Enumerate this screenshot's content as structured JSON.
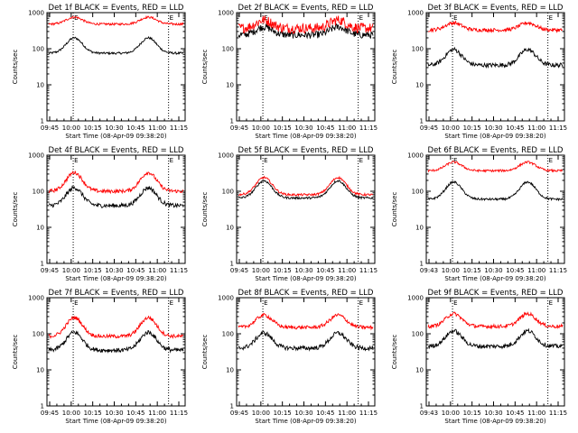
{
  "figure": {
    "background": "#ffffff"
  },
  "chart_data": [
    {
      "type": "line",
      "title": "Det 1f BLACK = Events, RED = LLD",
      "xlabel": "Start Time (08-Apr-09 09:38:20)",
      "ylabel": "Counts/sec",
      "yscale": "log",
      "ylim": [
        1,
        1000
      ],
      "y_ticks": [
        "1",
        "10",
        "100",
        "1000"
      ],
      "x_ticks": [
        "09:45",
        "10:00",
        "10:15",
        "10:30",
        "10:45",
        "11:00",
        "11:15"
      ],
      "markers": [
        "E",
        "E"
      ],
      "series": [
        {
          "name": "Events",
          "color": "#000000",
          "base": 75,
          "peak": 200,
          "noise": 0.03
        },
        {
          "name": "LLD",
          "color": "#ff0000",
          "base": 480,
          "peak": 750,
          "noise": 0.03
        }
      ]
    },
    {
      "type": "line",
      "title": "Det 2f BLACK = Events, RED = LLD",
      "xlabel": "Start Time (08-Apr-09 09:38:20)",
      "ylabel": "Counts/sec",
      "yscale": "log",
      "ylim": [
        1,
        1000
      ],
      "y_ticks": [
        "1",
        "10",
        "100",
        "1000"
      ],
      "x_ticks": [
        "09:45",
        "10:00",
        "10:15",
        "10:30",
        "10:45",
        "11:00",
        "11:15"
      ],
      "markers": [
        "E",
        "E"
      ],
      "series": [
        {
          "name": "Events",
          "color": "#000000",
          "base": 240,
          "peak": 400,
          "noise": 0.1
        },
        {
          "name": "LLD",
          "color": "#ff0000",
          "base": 370,
          "peak": 620,
          "noise": 0.14
        }
      ]
    },
    {
      "type": "line",
      "title": "Det 3f BLACK = Events, RED = LLD",
      "xlabel": "Start Time (08-Apr-09 09:38:20)",
      "ylabel": "Counts/sec",
      "yscale": "log",
      "ylim": [
        1,
        1000
      ],
      "y_ticks": [
        "1",
        "10",
        "100",
        "1000"
      ],
      "x_ticks": [
        "09:45",
        "10:00",
        "10:15",
        "10:30",
        "10:45",
        "11:00",
        "11:15"
      ],
      "markers": [
        "E",
        "E"
      ],
      "series": [
        {
          "name": "Events",
          "color": "#000000",
          "base": 35,
          "peak": 95,
          "noise": 0.06
        },
        {
          "name": "LLD",
          "color": "#ff0000",
          "base": 330,
          "peak": 520,
          "noise": 0.05
        }
      ]
    },
    {
      "type": "line",
      "title": "Det 4f BLACK = Events, RED = LLD",
      "xlabel": "Start Time (08-Apr-09 09:38:20)",
      "ylabel": "Counts/sec",
      "yscale": "log",
      "ylim": [
        1,
        1000
      ],
      "y_ticks": [
        "1",
        "10",
        "100",
        "1000"
      ],
      "x_ticks": [
        "09:45",
        "10:00",
        "10:15",
        "10:30",
        "10:45",
        "11:00",
        "11:15"
      ],
      "markers": [
        "E",
        "E"
      ],
      "series": [
        {
          "name": "Events",
          "color": "#000000",
          "base": 40,
          "peak": 125,
          "noise": 0.06
        },
        {
          "name": "LLD",
          "color": "#ff0000",
          "base": 100,
          "peak": 330,
          "noise": 0.05
        }
      ]
    },
    {
      "type": "line",
      "title": "Det 5f BLACK = Events, RED = LLD",
      "xlabel": "Start Time (08-Apr-09 09:38:20)",
      "ylabel": "Counts/sec",
      "yscale": "log",
      "ylim": [
        1,
        1000
      ],
      "y_ticks": [
        "1",
        "10",
        "100",
        "1000"
      ],
      "x_ticks": [
        "09:45",
        "10:00",
        "10:15",
        "10:30",
        "10:45",
        "11:00",
        "11:15"
      ],
      "markers": [
        "E",
        "E"
      ],
      "series": [
        {
          "name": "Events",
          "color": "#000000",
          "base": 65,
          "peak": 195,
          "noise": 0.03
        },
        {
          "name": "LLD",
          "color": "#ff0000",
          "base": 80,
          "peak": 240,
          "noise": 0.03
        }
      ]
    },
    {
      "type": "line",
      "title": "Det 6f BLACK = Events, RED = LLD",
      "xlabel": "Start Time (08-Apr-09 09:38:20)",
      "ylabel": "Counts/sec",
      "yscale": "log",
      "ylim": [
        1,
        1000
      ],
      "y_ticks": [
        "1",
        "10",
        "100",
        "1000"
      ],
      "x_ticks": [
        "09:43",
        "10:00",
        "10:15",
        "10:30",
        "10:45",
        "11:00",
        "11:15"
      ],
      "markers": [
        "E",
        "E"
      ],
      "series": [
        {
          "name": "Events",
          "color": "#000000",
          "base": 60,
          "peak": 180,
          "noise": 0.03
        },
        {
          "name": "LLD",
          "color": "#ff0000",
          "base": 370,
          "peak": 640,
          "noise": 0.03
        }
      ]
    },
    {
      "type": "line",
      "title": "Det 7f BLACK = Events, RED = LLD",
      "xlabel": "Start Time (08-Apr-09 09:38:20)",
      "ylabel": "Counts/sec",
      "yscale": "log",
      "ylim": [
        1,
        1000
      ],
      "y_ticks": [
        "1",
        "10",
        "100",
        "1000"
      ],
      "x_ticks": [
        "09:45",
        "10:00",
        "10:15",
        "10:30",
        "10:45",
        "11:00",
        "11:15"
      ],
      "markers": [
        "E",
        "E"
      ],
      "series": [
        {
          "name": "Events",
          "color": "#000000",
          "base": 35,
          "peak": 110,
          "noise": 0.06
        },
        {
          "name": "LLD",
          "color": "#ff0000",
          "base": 85,
          "peak": 280,
          "noise": 0.05
        }
      ]
    },
    {
      "type": "line",
      "title": "Det 8f BLACK = Events, RED = LLD",
      "xlabel": "Start Time (08-Apr-09 09:38:20)",
      "ylabel": "Counts/sec",
      "yscale": "log",
      "ylim": [
        1,
        1000
      ],
      "y_ticks": [
        "1",
        "10",
        "100",
        "1000"
      ],
      "x_ticks": [
        "09:45",
        "10:00",
        "10:15",
        "10:30",
        "10:45",
        "11:00",
        "11:15"
      ],
      "markers": [
        "E",
        "E"
      ],
      "series": [
        {
          "name": "Events",
          "color": "#000000",
          "base": 40,
          "peak": 105,
          "noise": 0.06
        },
        {
          "name": "LLD",
          "color": "#ff0000",
          "base": 150,
          "peak": 330,
          "noise": 0.05
        }
      ]
    },
    {
      "type": "line",
      "title": "Det 9f BLACK = Events, RED = LLD",
      "xlabel": "Start Time (08-Apr-09 09:38:20)",
      "ylabel": "Counts/sec",
      "yscale": "log",
      "ylim": [
        1,
        1000
      ],
      "y_ticks": [
        "1",
        "10",
        "100",
        "1000"
      ],
      "x_ticks": [
        "09:43",
        "10:00",
        "10:15",
        "10:30",
        "10:45",
        "11:00",
        "11:15"
      ],
      "markers": [
        "E",
        "E"
      ],
      "series": [
        {
          "name": "Events",
          "color": "#000000",
          "base": 45,
          "peak": 120,
          "noise": 0.06
        },
        {
          "name": "LLD",
          "color": "#ff0000",
          "base": 160,
          "peak": 360,
          "noise": 0.05
        }
      ]
    }
  ]
}
